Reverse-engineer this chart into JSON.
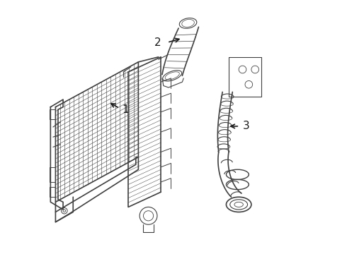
{
  "background_color": "#ffffff",
  "line_color": "#404040",
  "label_color": "#1a1a1a",
  "figsize": [
    4.9,
    3.6
  ],
  "dpi": 100
}
